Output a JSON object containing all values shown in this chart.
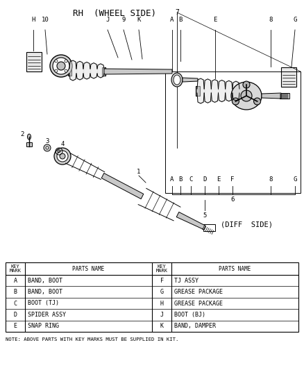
{
  "title": "RH  (WHEEL SIDE)",
  "diff_side_label": "(DIFF  SIDE)",
  "bg_color": "#ffffff",
  "fig_width": 4.38,
  "fig_height": 5.33,
  "table": {
    "col1_headers": [
      "KEY\nMARK",
      "PARTS NAME"
    ],
    "col2_headers": [
      "KEY\nMARK",
      "PARTS NAME"
    ],
    "rows_left": [
      [
        "A",
        "BAND, BOOT"
      ],
      [
        "B",
        "BAND, BOOT"
      ],
      [
        "C",
        "BOOT (TJ)"
      ],
      [
        "D",
        "SPIDER ASSY"
      ],
      [
        "E",
        "SNAP RING"
      ]
    ],
    "rows_right": [
      [
        "F",
        "TJ ASSY"
      ],
      [
        "G",
        "GREASE PACKAGE"
      ],
      [
        "H",
        "GREASE PACKAGE"
      ],
      [
        "J",
        "BOOT (BJ)"
      ],
      [
        "K",
        "BAND, DAMPER"
      ]
    ]
  },
  "note": "NOTE: ABOVE PARTS WITH KEY MARKS MUST BE SUPPLIED IN KIT.",
  "callout_labels_top": [
    "H",
    "10",
    "J",
    "9",
    "K",
    "A",
    "B",
    "E",
    "8",
    "G"
  ],
  "callout_labels_bottom": [
    "A",
    "B",
    "C",
    "D",
    "E",
    "F",
    "8",
    "G"
  ],
  "number_labels": [
    "2",
    "3",
    "4",
    "1",
    "5",
    "6",
    "7"
  ]
}
